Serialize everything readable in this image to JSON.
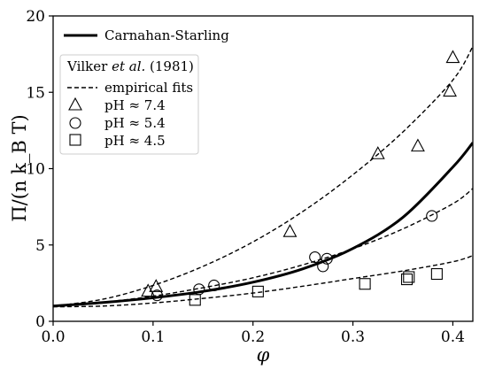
{
  "chart_data": {
    "type": "scatter",
    "xlabel": "φ",
    "ylabel": "Π/(n k_B T)",
    "xlim": [
      0.0,
      0.42
    ],
    "ylim": [
      0,
      20
    ],
    "xticks": [
      0.0,
      0.1,
      0.2,
      0.3,
      0.4
    ],
    "yticks": [
      0,
      5,
      10,
      15,
      20
    ],
    "x_tick_labels": [
      "0.0",
      "0.1",
      "0.2",
      "0.3",
      "0.4"
    ],
    "y_tick_labels": [
      "0",
      "5",
      "10",
      "15",
      "20"
    ],
    "grid": false,
    "series": [
      {
        "name": "Carnahan-Starling",
        "kind": "line",
        "style": "solid",
        "color": "#000000",
        "x": [
          0.0,
          0.05,
          0.1,
          0.15,
          0.2,
          0.25,
          0.3,
          0.35,
          0.4,
          0.42
        ],
        "y": [
          1.0,
          1.23,
          1.54,
          1.96,
          2.56,
          3.44,
          4.77,
          6.81,
          10.1,
          11.7
        ]
      },
      {
        "name": "pH ≈ 7.4",
        "kind": "fit_and_points",
        "marker": "triangle",
        "fit": {
          "x": [
            0.0,
            0.05,
            0.1,
            0.15,
            0.2,
            0.25,
            0.3,
            0.35,
            0.4,
            0.42
          ],
          "y": [
            1.0,
            1.45,
            2.35,
            3.6,
            5.2,
            7.2,
            9.6,
            12.4,
            15.8,
            18.0
          ]
        },
        "points": {
          "x": [
            0.095,
            0.103,
            0.237,
            0.325,
            0.365,
            0.397,
            0.4
          ],
          "y": [
            2.0,
            2.3,
            5.9,
            11.0,
            11.5,
            15.1,
            17.3
          ]
        }
      },
      {
        "name": "pH ≈ 5.4",
        "kind": "fit_and_points",
        "marker": "circle",
        "fit": {
          "x": [
            0.0,
            0.05,
            0.1,
            0.15,
            0.2,
            0.25,
            0.3,
            0.35,
            0.4,
            0.42
          ],
          "y": [
            1.0,
            1.25,
            1.65,
            2.2,
            2.85,
            3.7,
            4.75,
            6.05,
            7.7,
            8.7
          ]
        },
        "points": {
          "x": [
            0.104,
            0.146,
            0.161,
            0.262,
            0.27,
            0.274,
            0.379
          ],
          "y": [
            1.7,
            2.1,
            2.35,
            4.2,
            3.6,
            4.1,
            6.9
          ]
        }
      },
      {
        "name": "pH ≈ 4.5",
        "kind": "fit_and_points",
        "marker": "square",
        "fit": {
          "x": [
            0.0,
            0.05,
            0.1,
            0.15,
            0.2,
            0.25,
            0.3,
            0.35,
            0.4,
            0.42
          ],
          "y": [
            0.95,
            1.0,
            1.2,
            1.5,
            1.85,
            2.3,
            2.8,
            3.3,
            3.9,
            4.3
          ]
        },
        "points": {
          "x": [
            0.142,
            0.205,
            0.312,
            0.354,
            0.356,
            0.384
          ],
          "y": [
            1.4,
            1.95,
            2.45,
            2.75,
            2.9,
            3.1
          ]
        }
      }
    ],
    "legend": {
      "placement": "top-left",
      "main_label": "Carnahan-Starling",
      "group_title_before": "Vilker ",
      "group_title_italic": "et al.",
      "group_title_after": " (1981)",
      "fit_label": "empirical fits",
      "markers": [
        {
          "symbol": "triangle",
          "label": "pH ≈ 7.4"
        },
        {
          "symbol": "circle",
          "label": "pH ≈ 5.4"
        },
        {
          "symbol": "square",
          "label": "pH ≈ 4.5"
        }
      ]
    }
  }
}
